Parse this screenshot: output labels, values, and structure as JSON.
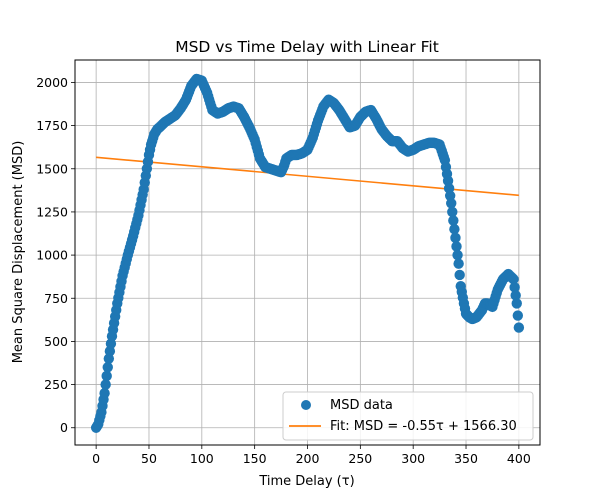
{
  "chart_data": {
    "type": "scatter",
    "title": "MSD vs Time Delay with Linear Fit",
    "xlabel": "Time Delay (τ)",
    "ylabel": "Mean Square Displacement (MSD)",
    "xlim": [
      -20,
      420
    ],
    "ylim": [
      -100,
      2130
    ],
    "xticks": [
      0,
      50,
      100,
      150,
      200,
      250,
      300,
      350,
      400
    ],
    "yticks": [
      0,
      250,
      500,
      750,
      1000,
      1250,
      1500,
      1750,
      2000
    ],
    "grid": true,
    "legend_position": "lower right",
    "series": [
      {
        "name": "MSD data",
        "kind": "scatter",
        "color": "#1f77b4",
        "x": [
          0,
          2,
          5,
          8,
          10,
          12,
          15,
          20,
          25,
          30,
          35,
          40,
          45,
          48,
          50,
          52,
          55,
          58,
          60,
          65,
          70,
          75,
          80,
          85,
          90,
          95,
          100,
          105,
          110,
          115,
          120,
          125,
          130,
          135,
          140,
          145,
          150,
          155,
          160,
          165,
          170,
          175,
          178,
          180,
          185,
          190,
          195,
          200,
          205,
          210,
          215,
          220,
          225,
          230,
          235,
          240,
          245,
          250,
          255,
          260,
          265,
          270,
          275,
          280,
          285,
          290,
          295,
          300,
          305,
          310,
          315,
          320,
          325,
          330,
          333,
          336,
          340,
          343,
          345,
          348,
          350,
          353,
          356,
          360,
          365,
          368,
          370,
          375,
          380,
          385,
          390,
          395,
          398,
          400
        ],
        "y": [
          0,
          20,
          90,
          200,
          300,
          400,
          530,
          720,
          880,
          1000,
          1110,
          1230,
          1380,
          1500,
          1580,
          1640,
          1700,
          1730,
          1740,
          1770,
          1790,
          1810,
          1850,
          1900,
          1980,
          2020,
          2010,
          1940,
          1840,
          1820,
          1830,
          1850,
          1860,
          1850,
          1800,
          1740,
          1670,
          1560,
          1510,
          1500,
          1490,
          1480,
          1520,
          1560,
          1580,
          1580,
          1590,
          1610,
          1680,
          1780,
          1860,
          1900,
          1880,
          1840,
          1790,
          1740,
          1750,
          1800,
          1830,
          1840,
          1790,
          1730,
          1690,
          1660,
          1660,
          1620,
          1600,
          1610,
          1630,
          1640,
          1650,
          1650,
          1640,
          1550,
          1430,
          1300,
          1100,
          950,
          820,
          720,
          660,
          640,
          630,
          640,
          680,
          720,
          720,
          700,
          800,
          860,
          890,
          860,
          720,
          580
        ]
      },
      {
        "name": "Fit: MSD = -0.55τ + 1566.30",
        "kind": "line",
        "color": "#ff7f0e",
        "slope": -0.55,
        "intercept": 1566.3,
        "x": [
          0,
          400
        ],
        "y": [
          1566.3,
          1346.3
        ]
      }
    ]
  }
}
